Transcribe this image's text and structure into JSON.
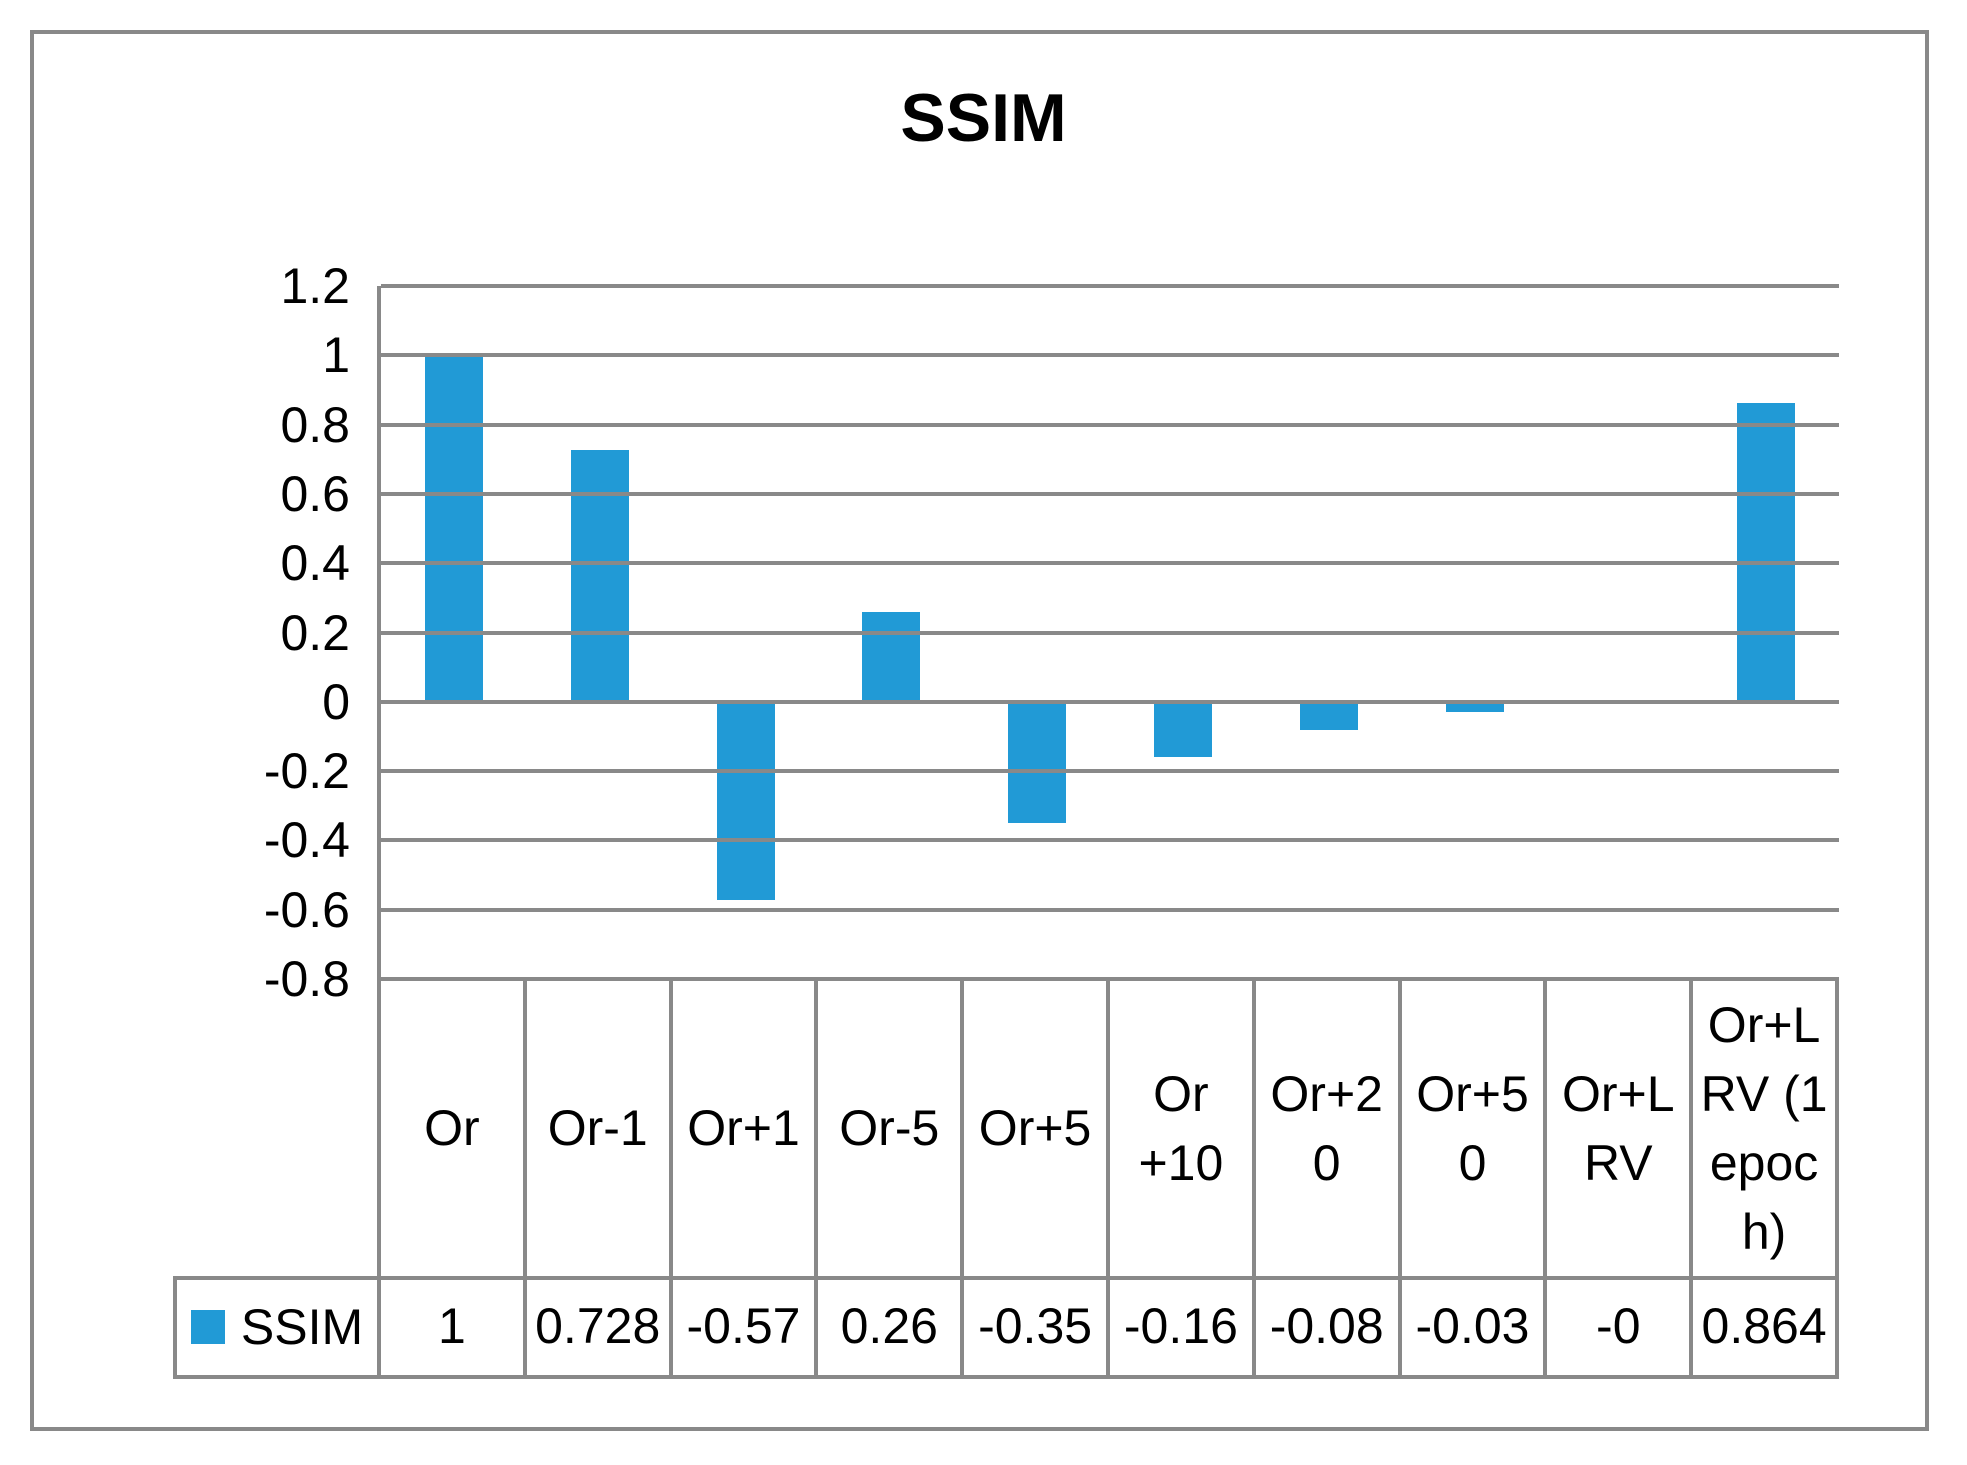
{
  "title": "SSIM",
  "colors": {
    "bar": "#219AD6",
    "line": "#898989",
    "text": "#000000",
    "background": "#FFFFFF"
  },
  "legend": {
    "label": "SSIM",
    "marker": "square",
    "marker_color": "#219AD6"
  },
  "y_axis": {
    "tick_labels": [
      "1.2",
      "1",
      "0.8",
      "0.6",
      "0.4",
      "0.2",
      "0",
      "-0.2",
      "-0.4",
      "-0.6",
      "-0.8"
    ],
    "min": -0.8,
    "max": 1.2,
    "step": 0.2
  },
  "table": {
    "series_label": "SSIM",
    "header_display": [
      "Or",
      "Or-1",
      "Or+1",
      "Or-5",
      "Or+5",
      "Or\n+10",
      "Or+2\n0",
      "Or+5\n0",
      "Or+L\nRV",
      "Or+L\nRV (1\nepoc\nh)"
    ],
    "value_display": [
      "1",
      "0.728",
      "-0.57",
      "0.26",
      "-0.35",
      "-0.16",
      "-0.08",
      "-0.03",
      "-0",
      "0.864"
    ]
  },
  "chart_data": {
    "type": "bar",
    "title": "SSIM",
    "categories": [
      "Or",
      "Or-1",
      "Or+1",
      "Or-5",
      "Or+5",
      "Or +10",
      "Or+20",
      "Or+50",
      "Or+L RV",
      "Or+L RV (1 epoch)"
    ],
    "series": [
      {
        "name": "SSIM",
        "values": [
          1,
          0.728,
          -0.57,
          0.26,
          -0.35,
          -0.16,
          -0.08,
          -0.03,
          0,
          0.864
        ]
      }
    ],
    "xlabel": "",
    "ylabel": "",
    "ylim": [
      -0.8,
      1.2
    ],
    "ytick_step": 0.2,
    "grid": true,
    "gridline_color": "#898989",
    "bar_color": "#219AD6",
    "legend_position": "bottom",
    "data_table_shown": true
  }
}
